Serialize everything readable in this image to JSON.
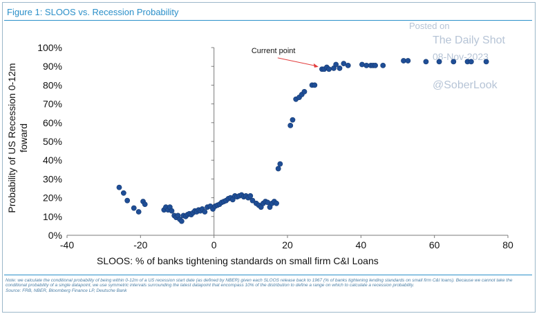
{
  "figure_title": "Figure 1: SLOOS vs. Recession Probability",
  "watermark": {
    "posted": "Posted on",
    "source": "The Daily Shot",
    "date": "08-Nov-2023",
    "handle": "@SoberLook"
  },
  "footnote": "Note: we calculate the conditional probability of being within 0-12m of a US recession start date (as defined by NBER) given each SLOOS release back to 1967 (% of banks tightening lending standards on small firm C&I loans). Because we cannot take the conditional probability of a single datapoint, we use symmetric intervals surrounding the latest datapoint that encompass 10% of the distribution to define a range on which to calculate a recession probability.",
  "source_note": "Source: FRB, NBER, Bloomberg Finance LP, Deutsche Bank",
  "colors": {
    "accent": "#2a8fc9",
    "marker": "#1f4e96",
    "arrow": "#e23b3b"
  },
  "chart_data": {
    "type": "scatter",
    "title": "",
    "xlabel": "SLOOS: % of banks tightening standards on small firm C&I Loans",
    "ylabel": "Probability of US Recession 0-12m foward",
    "xlim": [
      -40,
      80
    ],
    "ylim": [
      0,
      100
    ],
    "xticks": [
      -40,
      -20,
      0,
      20,
      40,
      60,
      80
    ],
    "yticks": [
      0,
      10,
      20,
      30,
      40,
      50,
      60,
      70,
      80,
      90,
      100
    ],
    "xtick_labels": [
      "-40",
      "-20",
      "0",
      "20",
      "40",
      "60",
      "80"
    ],
    "ytick_labels": [
      "0%",
      "10%",
      "20%",
      "30%",
      "40%",
      "50%",
      "60%",
      "70%",
      "80%",
      "90%",
      "100%"
    ],
    "grid": false,
    "annotation": {
      "label": "Current point",
      "x": 29,
      "y": 89
    },
    "points": [
      [
        -25.8,
        25.5
      ],
      [
        -24.6,
        22.5
      ],
      [
        -23.6,
        18.5
      ],
      [
        -21.8,
        14.5
      ],
      [
        -20.5,
        12.5
      ],
      [
        -19.3,
        18
      ],
      [
        -18.8,
        16.5
      ],
      [
        -13.6,
        13.5
      ],
      [
        -13.1,
        15
      ],
      [
        -12.5,
        13.5
      ],
      [
        -12,
        15
      ],
      [
        -11.5,
        13
      ],
      [
        -10.8,
        10.5
      ],
      [
        -10.3,
        9.5
      ],
      [
        -9.8,
        10.5
      ],
      [
        -9.3,
        8.5
      ],
      [
        -8.8,
        7.5
      ],
      [
        -8.3,
        10.5
      ],
      [
        -7.7,
        10
      ],
      [
        -7.2,
        11
      ],
      [
        -6.7,
        11.5
      ],
      [
        -6.2,
        11
      ],
      [
        -5.7,
        12
      ],
      [
        -5.2,
        13
      ],
      [
        -4.7,
        12.5
      ],
      [
        -4.2,
        13.5
      ],
      [
        -3.7,
        13
      ],
      [
        -3.2,
        14
      ],
      [
        -2.5,
        12.5
      ],
      [
        -1.8,
        15
      ],
      [
        -1,
        15.5
      ],
      [
        -0.3,
        14
      ],
      [
        0.3,
        15.5
      ],
      [
        0.9,
        16
      ],
      [
        1.5,
        16.5
      ],
      [
        2.1,
        17.5
      ],
      [
        2.7,
        18
      ],
      [
        3.3,
        18.5
      ],
      [
        3.9,
        19.5
      ],
      [
        4.5,
        20
      ],
      [
        5.1,
        19
      ],
      [
        5.7,
        21
      ],
      [
        6.3,
        20.5
      ],
      [
        6.9,
        21
      ],
      [
        7.5,
        21.5
      ],
      [
        8.1,
        20.5
      ],
      [
        8.7,
        21
      ],
      [
        9.3,
        20
      ],
      [
        9.9,
        21
      ],
      [
        10.5,
        18.5
      ],
      [
        11.5,
        17
      ],
      [
        12.2,
        16
      ],
      [
        12.8,
        15
      ],
      [
        13.4,
        17
      ],
      [
        14,
        18
      ],
      [
        14.6,
        17.5
      ],
      [
        15.2,
        15
      ],
      [
        15.8,
        17
      ],
      [
        16.4,
        18
      ],
      [
        17,
        17
      ],
      [
        17.5,
        35.5
      ],
      [
        18,
        38
      ],
      [
        20.8,
        58.5
      ],
      [
        21.4,
        61.5
      ],
      [
        22.3,
        72.5
      ],
      [
        23.2,
        73.5
      ],
      [
        23.9,
        75
      ],
      [
        24.6,
        76.5
      ],
      [
        26.7,
        80
      ],
      [
        27.4,
        80
      ],
      [
        29.4,
        88.5
      ],
      [
        30,
        88.5
      ],
      [
        30.7,
        89.5
      ],
      [
        31.3,
        88.5
      ],
      [
        32.6,
        89
      ],
      [
        33.2,
        91
      ],
      [
        34.2,
        89
      ],
      [
        35.3,
        91.5
      ],
      [
        36.5,
        90.5
      ],
      [
        40.3,
        91
      ],
      [
        41.5,
        90.5
      ],
      [
        42.7,
        90.5
      ],
      [
        43.3,
        90.5
      ],
      [
        43.9,
        90.5
      ],
      [
        46,
        90.5
      ],
      [
        51.6,
        93
      ],
      [
        52.8,
        93
      ],
      [
        57.7,
        92.5
      ],
      [
        61.3,
        92.5
      ],
      [
        65.2,
        92.5
      ],
      [
        69,
        92.5
      ],
      [
        70,
        92.5
      ],
      [
        74.1,
        92.5
      ]
    ]
  }
}
